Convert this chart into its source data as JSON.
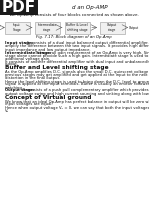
{
  "pdf_label": "PDF",
  "page_title": "d an Op-AMP",
  "intro_text": "An Op-Amp consists of four blocks connected as shown above.",
  "fig_caption": "Fig. 7.17: Block diagram of an Op-Amp",
  "blocks": [
    "Input\nStage",
    "Intermediate\nstage",
    "Buffer & Level\nshifting stage",
    "Output\nstage"
  ],
  "bg_color": "#ffffff",
  "box_facecolor": "#f0f0f0",
  "box_edge": "#999999",
  "text_color": "#111111",
  "pdf_bg": "#1a1a1a",
  "pdf_text": "#ffffff",
  "input_stage_title": "Input stage:",
  "input_stage_body": "It consists of a dual input balanced output differential amplifier. Its function is to amplify the difference between the two input signals. It provides high differential gain, high input impedance and low output impedance.",
  "inter_stage_title": "Intermediate stage:",
  "inter_stage_body": "The overall gain requirement of an Op-Amp is very high. Since the input stage alone cannot provide such a high gain. Intermediate stage is used to provide the required additional voltage gain.\nIt consists of another differential amplifier with dual input and unbalanced/single ended output.",
  "section1_title": "Buffer and Level shifting stage",
  "section1_body1": "As the Op-Amp amplifies D.C. signals also the small D.C. quiescent voltage level of previous stages may get amplified and get applied at the input to the next stage causing distortion in the final output.",
  "section1_body2": "Hence the level shifting stage is used to bring down the D.C. level to ground potential, when no signal is applied at the input terminals. Buffer is usually an emitter follower used for impedance matching.",
  "output_stage_inline": "Output stage:",
  "output_stage_body": " It consists of a push pull complementary amplifier which provides large A.C. output voltage swing and high current sourcing and sinking along with low output impedance.",
  "section2_title": "Concept of Virtual ground",
  "section2_body1": "We know that an ideal Op-Amp has perfect balance in output will be zero when input voltages are equal.",
  "section2_body2": "Hence when output voltage V₀ = 0, we can say that both the input voltages are equal or V₁ = V₂"
}
